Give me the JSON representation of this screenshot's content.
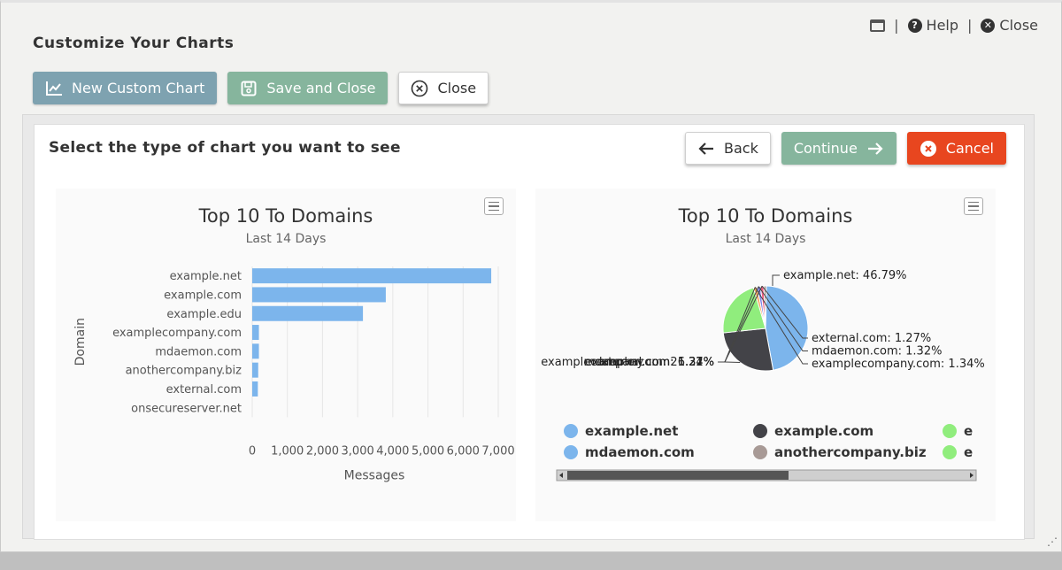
{
  "header": {
    "title": "Customize Your Charts",
    "help_label": "Help",
    "close_label": "Close"
  },
  "toolbar": {
    "new_chart_label": "New Custom Chart",
    "save_close_label": "Save and Close",
    "close_label": "Close"
  },
  "panel": {
    "title": "Select the type of chart you want to see",
    "back_label": "Back",
    "continue_label": "Continue",
    "cancel_label": "Cancel"
  },
  "colors": {
    "blue_button": "#7ea2b0",
    "green_button": "#86b59d",
    "red_button": "#e8461f",
    "bar": "#7cb5ec",
    "series": [
      "#7cb5ec",
      "#434348",
      "#90ed7d",
      "#f7a35c",
      "#8085e9",
      "#f15c80",
      "#e4d354",
      "#2b908f"
    ]
  },
  "chart_data": [
    {
      "type": "bar",
      "orientation": "horizontal",
      "title": "Top 10 To Domains",
      "subtitle": "Last 14 Days",
      "xlabel": "Messages",
      "ylabel": "Domain",
      "categories": [
        "example.net",
        "example.com",
        "example.edu",
        "examplecompany.com",
        "mdaemon.com",
        "anothercompany.biz",
        "external.com",
        "onsecureserver.net"
      ],
      "values": [
        6800,
        3800,
        3150,
        190,
        190,
        170,
        160,
        0
      ],
      "xlim": [
        0,
        7000
      ],
      "x_ticks": [
        "0",
        "1,000",
        "2,000",
        "3,000",
        "4,000",
        "5,000",
        "6,000",
        "7,000"
      ],
      "grid": true
    },
    {
      "type": "pie",
      "title": "Top 10 To Domains",
      "subtitle": "Last 14 Days",
      "slices": [
        {
          "name": "example.net",
          "value": 46.79,
          "label": "example.net: 46.79%",
          "color": "#7cb5ec"
        },
        {
          "name": "example.com",
          "value": 26.21,
          "label": "example.com: 26.21%",
          "color": "#434348"
        },
        {
          "name": "example.edu",
          "value": 22.1,
          "label": "",
          "color": "#90ed7d"
        },
        {
          "name": "examplecompany.com",
          "value": 1.34,
          "label": "examplecompany.com: 1.34%",
          "color": "#f7a35c"
        },
        {
          "name": "mdaemon.com",
          "value": 1.32,
          "label": "mdaemon.com: 1.32%",
          "color": "#8085e9"
        },
        {
          "name": "external.com",
          "value": 1.27,
          "label": "external.com: 1.27%",
          "color": "#f15c80"
        },
        {
          "name": "anothercompany.biz",
          "value": 0.97,
          "label": "",
          "color": "#a89a96"
        }
      ],
      "legend": [
        {
          "name": "example.net",
          "color": "#7cb5ec"
        },
        {
          "name": "example.com",
          "color": "#434348"
        },
        {
          "name": "e",
          "color": "#90ed7d"
        },
        {
          "name": "mdaemon.com",
          "color": "#7cb5ec"
        },
        {
          "name": "anothercompany.biz",
          "color": "#a89a96"
        },
        {
          "name": "e",
          "color": "#90ed7d"
        }
      ],
      "legend_position": "bottom"
    }
  ]
}
